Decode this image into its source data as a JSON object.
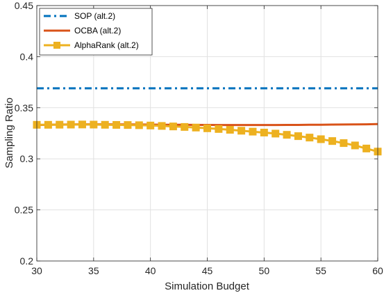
{
  "chart_data": {
    "type": "line",
    "xlabel": "Simulation Budget",
    "ylabel": "Sampling Ratio",
    "xlim": [
      30,
      60
    ],
    "ylim": [
      0.2,
      0.45
    ],
    "xticks": [
      "30",
      "35",
      "40",
      "45",
      "50",
      "55",
      "60"
    ],
    "yticks": [
      "0.2",
      "0.25",
      "0.3",
      "0.35",
      "0.4",
      "0.45"
    ],
    "grid": true,
    "legend_position": "top-left",
    "x": [
      30,
      31,
      32,
      33,
      34,
      35,
      36,
      37,
      38,
      39,
      40,
      41,
      42,
      43,
      44,
      45,
      46,
      47,
      48,
      49,
      50,
      51,
      52,
      53,
      54,
      55,
      56,
      57,
      58,
      59,
      60
    ],
    "series": [
      {
        "name": "SOP (alt.2)",
        "color": "#0072BD",
        "style": "dashdot",
        "marker": "none",
        "values": [
          0.369,
          0.369,
          0.369,
          0.369,
          0.369,
          0.369,
          0.369,
          0.369,
          0.369,
          0.369,
          0.369,
          0.369,
          0.369,
          0.369,
          0.369,
          0.369,
          0.369,
          0.369,
          0.369,
          0.369,
          0.369,
          0.369,
          0.369,
          0.369,
          0.369,
          0.369,
          0.369,
          0.369,
          0.369,
          0.369,
          0.369
        ]
      },
      {
        "name": "OCBA (alt.2)",
        "color": "#D95319",
        "style": "solid",
        "marker": "none",
        "values": [
          0.333,
          0.3333,
          0.3335,
          0.3337,
          0.3338,
          0.3338,
          0.3338,
          0.3337,
          0.3337,
          0.3336,
          0.3335,
          0.3334,
          0.3334,
          0.3333,
          0.3332,
          0.3332,
          0.3331,
          0.3331,
          0.3331,
          0.3331,
          0.3331,
          0.3331,
          0.3332,
          0.3332,
          0.3333,
          0.3334,
          0.3335,
          0.3336,
          0.3337,
          0.3338,
          0.334
        ]
      },
      {
        "name": "AlphaRank (alt.2)",
        "color": "#EDB120",
        "style": "solid",
        "marker": "square",
        "values": [
          0.3333,
          0.3333,
          0.3334,
          0.3335,
          0.3336,
          0.3335,
          0.3333,
          0.3332,
          0.3331,
          0.3329,
          0.3326,
          0.3322,
          0.3317,
          0.3312,
          0.3306,
          0.3299,
          0.3292,
          0.3284,
          0.3275,
          0.3266,
          0.3257,
          0.3247,
          0.3235,
          0.3222,
          0.3208,
          0.3192,
          0.3174,
          0.3154,
          0.3131,
          0.3101,
          0.3071
        ]
      }
    ]
  }
}
